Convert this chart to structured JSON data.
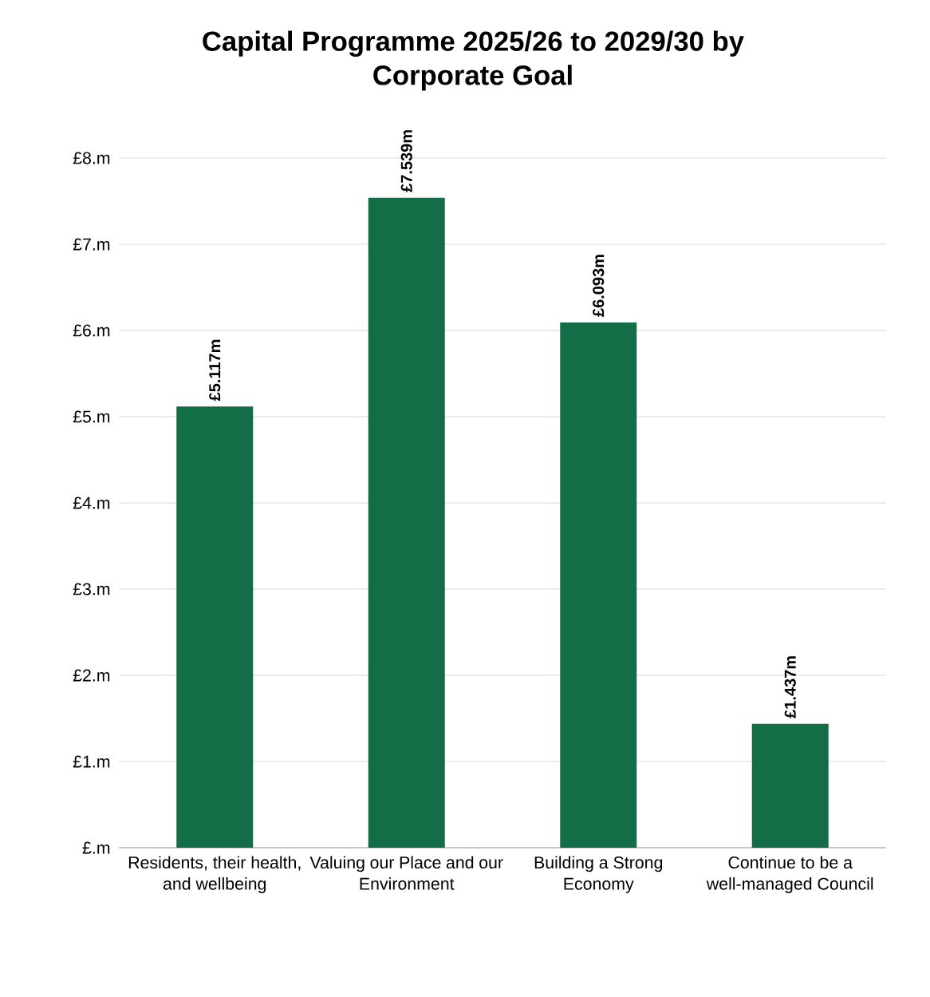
{
  "chart_data": {
    "type": "bar",
    "title": "Capital Programme 2025/26 to 2029/30 by Corporate Goal",
    "categories": [
      "Residents, their health, and wellbeing",
      "Valuing our Place and our Environment",
      "Building a Strong Economy",
      "Continue to be a well-managed Council"
    ],
    "values": [
      5.117,
      7.539,
      6.093,
      1.437
    ],
    "value_labels": [
      "£5.117m",
      "£7.539m",
      "£6.093m",
      "£1.437m"
    ],
    "color": "#136e48",
    "ylim": [
      0,
      8
    ],
    "yticks": [
      {
        "value": 0,
        "label": "£.m"
      },
      {
        "value": 1,
        "label": "£1.m"
      },
      {
        "value": 2,
        "label": "£2.m"
      },
      {
        "value": 3,
        "label": "£3.m"
      },
      {
        "value": 4,
        "label": "£4.m"
      },
      {
        "value": 5,
        "label": "£5.m"
      },
      {
        "value": 6,
        "label": "£6.m"
      },
      {
        "value": 7,
        "label": "£7.m"
      },
      {
        "value": 8,
        "label": "£8.m"
      }
    ],
    "grid": "y"
  }
}
